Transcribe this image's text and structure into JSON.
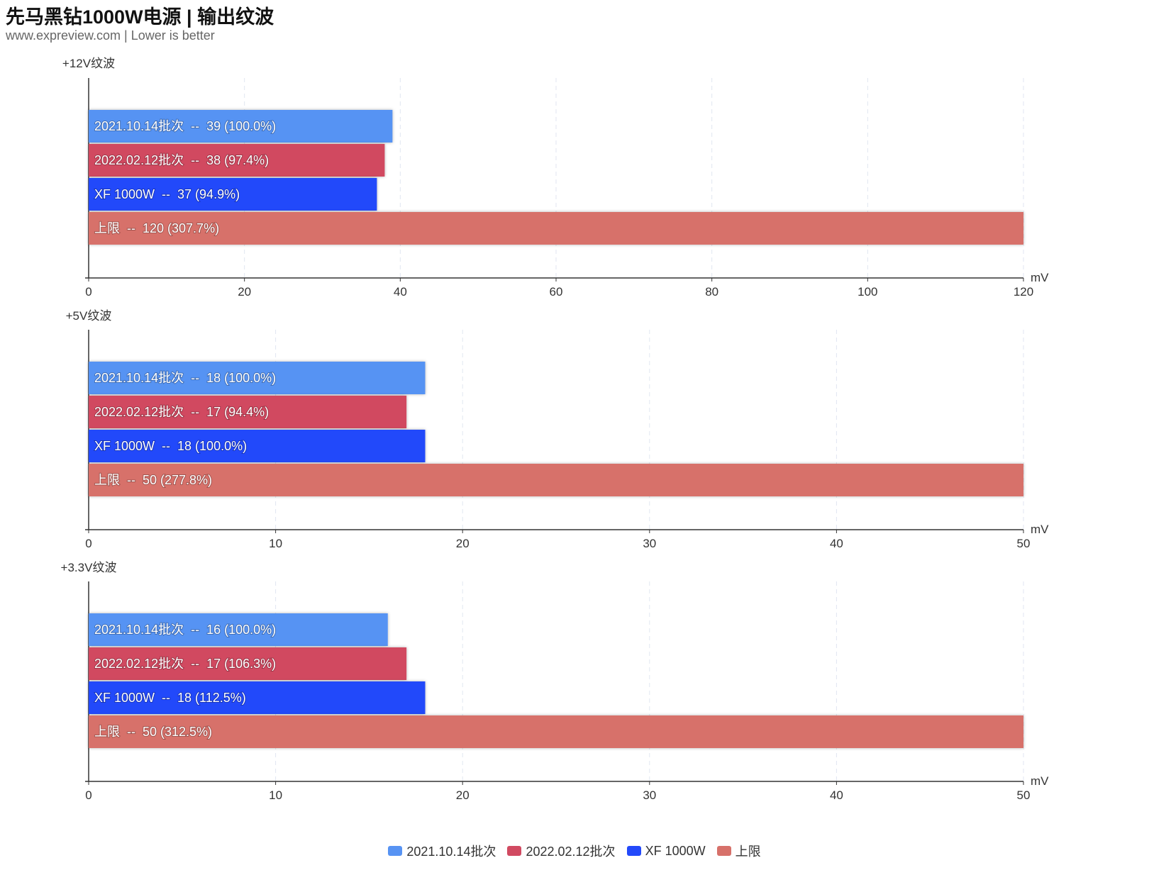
{
  "header": {
    "title": "先马黑钻1000W电源 | 输出纹波",
    "subtitle": "www.expreview.com | Lower is better"
  },
  "legend": [
    {
      "label": "2021.10.14批次",
      "color": "#5793f3"
    },
    {
      "label": "2022.02.12批次",
      "color": "#d14a61"
    },
    {
      "label": "XF 1000W",
      "color": "#2349fa"
    },
    {
      "label": "上限",
      "color": "#d7716a"
    }
  ],
  "chart_data": [
    {
      "type": "bar",
      "orientation": "horizontal",
      "title": "+12V纹波",
      "xlabel": "mV",
      "xlim": [
        0,
        120
      ],
      "ticks": [
        "0",
        "20",
        "40",
        "60",
        "80",
        "100",
        "120"
      ],
      "series": [
        {
          "name": "2021.10.14批次",
          "value": 39,
          "label": "2021.10.14批次  --  39 (100.0%)",
          "color": "#5793f3"
        },
        {
          "name": "2022.02.12批次",
          "value": 38,
          "label": "2022.02.12批次  --  38 (97.4%)",
          "color": "#d14a61"
        },
        {
          "name": "XF 1000W",
          "value": 37,
          "label": "XF 1000W  --  37 (94.9%)",
          "color": "#2349fa"
        },
        {
          "name": "上限",
          "value": 120,
          "label": "上限  --  120 (307.7%)",
          "color": "#d7716a"
        }
      ]
    },
    {
      "type": "bar",
      "orientation": "horizontal",
      "title": "+5V纹波",
      "xlabel": "mV",
      "xlim": [
        0,
        50
      ],
      "ticks": [
        "0",
        "10",
        "20",
        "30",
        "40",
        "50"
      ],
      "series": [
        {
          "name": "2021.10.14批次",
          "value": 18,
          "label": "2021.10.14批次  --  18 (100.0%)",
          "color": "#5793f3"
        },
        {
          "name": "2022.02.12批次",
          "value": 17,
          "label": "2022.02.12批次  --  17 (94.4%)",
          "color": "#d14a61"
        },
        {
          "name": "XF 1000W",
          "value": 18,
          "label": "XF 1000W  --  18 (100.0%)",
          "color": "#2349fa"
        },
        {
          "name": "上限",
          "value": 50,
          "label": "上限  --  50 (277.8%)",
          "color": "#d7716a"
        }
      ]
    },
    {
      "type": "bar",
      "orientation": "horizontal",
      "title": "+3.3V纹波",
      "xlabel": "mV",
      "xlim": [
        0,
        50
      ],
      "ticks": [
        "0",
        "10",
        "20",
        "30",
        "40",
        "50"
      ],
      "series": [
        {
          "name": "2021.10.14批次",
          "value": 16,
          "label": "2021.10.14批次  --  16 (100.0%)",
          "color": "#5793f3"
        },
        {
          "name": "2022.02.12批次",
          "value": 17,
          "label": "2022.02.12批次  --  17 (106.3%)",
          "color": "#d14a61"
        },
        {
          "name": "XF 1000W",
          "value": 18,
          "label": "XF 1000W  --  18 (112.5%)",
          "color": "#2349fa"
        },
        {
          "name": "上限",
          "value": 50,
          "label": "上限  --  50 (312.5%)",
          "color": "#d7716a"
        }
      ]
    }
  ]
}
